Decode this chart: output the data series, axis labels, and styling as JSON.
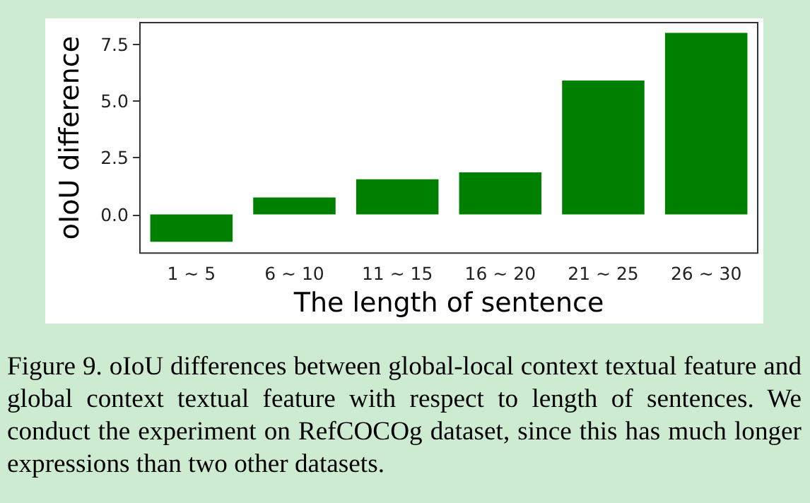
{
  "chart_data": {
    "type": "bar",
    "xlabel": "The length of sentence",
    "ylabel": "oIoU difference",
    "categories": [
      "1 ~ 5",
      "6 ~ 10",
      "11 ~ 15",
      "16 ~ 20",
      "21 ~ 25",
      "26 ~ 30"
    ],
    "values": [
      -1.2,
      0.75,
      1.55,
      1.85,
      5.9,
      8.0
    ],
    "color": "#008000",
    "ylim": [
      -1.7,
      8.45
    ],
    "yticks": [
      {
        "value": 0,
        "label": "0.0"
      },
      {
        "value": 2.5,
        "label": "2.5"
      },
      {
        "value": 5,
        "label": "5.0"
      },
      {
        "value": 7.5,
        "label": "7.5"
      }
    ],
    "grid": false,
    "annotations": [
      "Figure 9. oIoU differences between global-local context textual feature and global context textual feature with respect to length of sentences. We conduct the experiment on RefCOCOg dataset, since this has much longer expressions than two other datasets."
    ]
  }
}
